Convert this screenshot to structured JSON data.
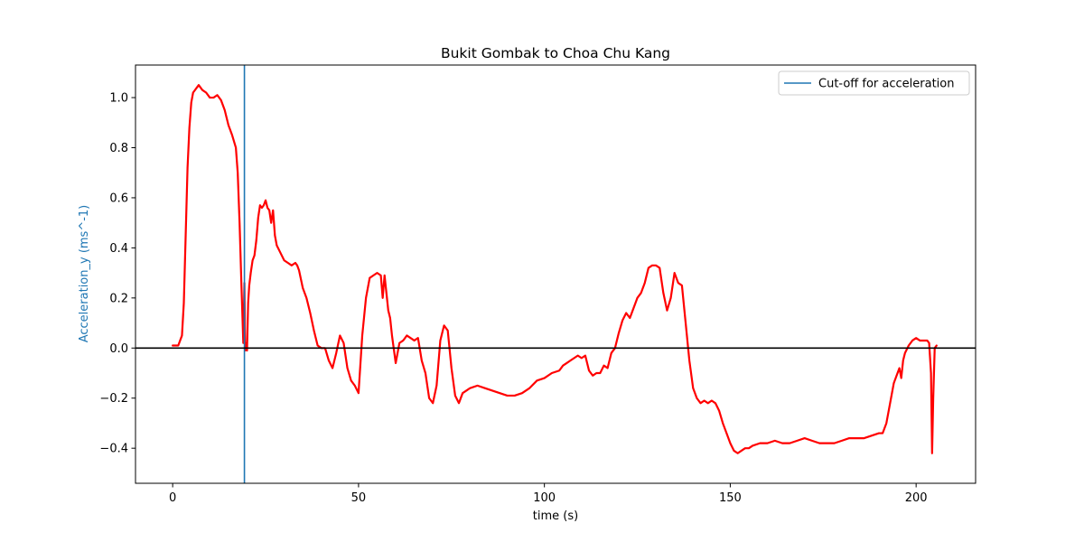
{
  "chart_data": {
    "type": "line",
    "title": "Bukit Gombak to Choa Chu Kang",
    "xlabel": "time (s)",
    "ylabel": "Acceleration_y (ms^-1)",
    "xlim": [
      -10,
      216
    ],
    "ylim": [
      -0.54,
      1.13
    ],
    "x_ticks": [
      0,
      50,
      100,
      150,
      200
    ],
    "x_tick_labels": [
      "0",
      "50",
      "100",
      "150",
      "200"
    ],
    "y_ticks": [
      -0.4,
      -0.2,
      0.0,
      0.2,
      0.4,
      0.6,
      0.8,
      1.0
    ],
    "y_tick_labels": [
      "−0.4",
      "−0.2",
      "0.0",
      "0.2",
      "0.4",
      "0.6",
      "0.8",
      "1.0"
    ],
    "grid": false,
    "legend": {
      "location": "upper right",
      "entries": [
        {
          "label": "Cut-off for acceleration",
          "color": "#1f77b4"
        }
      ]
    },
    "ylabel_color": "#1f77b4",
    "series": [
      {
        "color": "#ff0000",
        "x": [
          0,
          1.5,
          2.5,
          3,
          3.5,
          4,
          4.5,
          5,
          5.5,
          6,
          6.5,
          7,
          7.5,
          8,
          9,
          10,
          11,
          12,
          13,
          14,
          15,
          16,
          17,
          17.5,
          18,
          18.5,
          19,
          19.3,
          19.5,
          19.7,
          20,
          20.3,
          20.6,
          21,
          21.5,
          22,
          22.5,
          23,
          23.5,
          24,
          24.5,
          25,
          25.5,
          26,
          26.5,
          27,
          27.5,
          28,
          29,
          30,
          31,
          32,
          33,
          33.5,
          34,
          35,
          36,
          37,
          38,
          39,
          40,
          41,
          42,
          43,
          44,
          45,
          46,
          47,
          48,
          49,
          50,
          51,
          52,
          53,
          54,
          55,
          56,
          56.5,
          57,
          58,
          58.5,
          59,
          60,
          61,
          62,
          63,
          64,
          65,
          66,
          67,
          68,
          69,
          70,
          71,
          72,
          73,
          74,
          75,
          76,
          77,
          78,
          79,
          80,
          82,
          84,
          86,
          88,
          90,
          92,
          94,
          96,
          98,
          100,
          102,
          104,
          105,
          106,
          107,
          108,
          109,
          110,
          111,
          112,
          113,
          114,
          115,
          116,
          117,
          118,
          119,
          120,
          121,
          122,
          123,
          124,
          125,
          126,
          127,
          128,
          129,
          130,
          131,
          132,
          133,
          134,
          135,
          136,
          137,
          138,
          139,
          140,
          141,
          142,
          143,
          144,
          145,
          146,
          147,
          148,
          149,
          150,
          151,
          152,
          153,
          154,
          155,
          156,
          158,
          160,
          162,
          164,
          166,
          168,
          170,
          172,
          174,
          176,
          178,
          180,
          182,
          184,
          186,
          188,
          190,
          191,
          192,
          193,
          194,
          195,
          195.5,
          196,
          196.5,
          197,
          198,
          199,
          200,
          201,
          202,
          203,
          203.5,
          204,
          204.3,
          204.6,
          205,
          205.5
        ],
        "y": [
          0.01,
          0.01,
          0.05,
          0.18,
          0.45,
          0.72,
          0.88,
          0.98,
          1.02,
          1.03,
          1.04,
          1.05,
          1.04,
          1.03,
          1.02,
          1.0,
          1.0,
          1.01,
          0.99,
          0.95,
          0.89,
          0.85,
          0.8,
          0.7,
          0.5,
          0.25,
          0.02,
          0.26,
          -0.01,
          0.02,
          -0.01,
          0.18,
          0.25,
          0.3,
          0.35,
          0.37,
          0.43,
          0.52,
          0.57,
          0.56,
          0.57,
          0.59,
          0.56,
          0.55,
          0.5,
          0.55,
          0.45,
          0.41,
          0.38,
          0.35,
          0.34,
          0.33,
          0.34,
          0.33,
          0.31,
          0.24,
          0.2,
          0.14,
          0.07,
          0.01,
          0.0,
          0.0,
          -0.05,
          -0.08,
          -0.02,
          0.05,
          0.02,
          -0.08,
          -0.13,
          -0.15,
          -0.18,
          0.05,
          0.2,
          0.28,
          0.29,
          0.3,
          0.29,
          0.2,
          0.29,
          0.15,
          0.12,
          0.05,
          -0.06,
          0.02,
          0.03,
          0.05,
          0.04,
          0.03,
          0.04,
          -0.05,
          -0.1,
          -0.2,
          -0.22,
          -0.15,
          0.03,
          0.09,
          0.07,
          -0.08,
          -0.19,
          -0.22,
          -0.18,
          -0.17,
          -0.16,
          -0.15,
          -0.16,
          -0.17,
          -0.18,
          -0.19,
          -0.19,
          -0.18,
          -0.16,
          -0.13,
          -0.12,
          -0.1,
          -0.09,
          -0.07,
          -0.06,
          -0.05,
          -0.04,
          -0.03,
          -0.04,
          -0.03,
          -0.09,
          -0.11,
          -0.1,
          -0.1,
          -0.07,
          -0.08,
          -0.02,
          0.0,
          0.06,
          0.11,
          0.14,
          0.12,
          0.16,
          0.2,
          0.22,
          0.26,
          0.32,
          0.33,
          0.33,
          0.32,
          0.22,
          0.15,
          0.2,
          0.3,
          0.26,
          0.25,
          0.1,
          -0.05,
          -0.16,
          -0.2,
          -0.22,
          -0.21,
          -0.22,
          -0.21,
          -0.22,
          -0.25,
          -0.3,
          -0.34,
          -0.38,
          -0.41,
          -0.42,
          -0.41,
          -0.4,
          -0.4,
          -0.39,
          -0.38,
          -0.38,
          -0.37,
          -0.38,
          -0.38,
          -0.37,
          -0.36,
          -0.37,
          -0.38,
          -0.38,
          -0.38,
          -0.37,
          -0.36,
          -0.36,
          -0.36,
          -0.35,
          -0.34,
          -0.34,
          -0.3,
          -0.22,
          -0.14,
          -0.1,
          -0.08,
          -0.12,
          -0.05,
          -0.02,
          0.01,
          0.03,
          0.04,
          0.03,
          0.03,
          0.03,
          0.02,
          -0.1,
          -0.42,
          -0.2,
          0.0,
          0.01
        ]
      }
    ],
    "reference_lines": [
      {
        "orientation": "vertical",
        "x": 19.3,
        "color": "#1f77b4",
        "label": "Cut-off for acceleration"
      },
      {
        "orientation": "horizontal",
        "y": 0.0,
        "color": "#000000"
      }
    ]
  }
}
